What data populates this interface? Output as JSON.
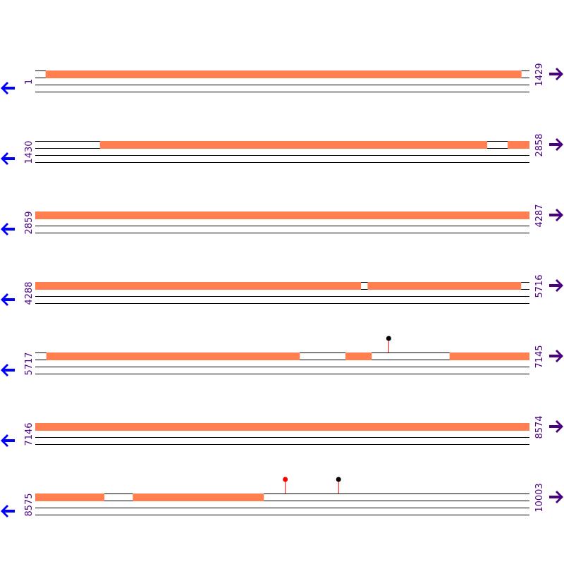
{
  "colors": {
    "feature": "#ff7f50",
    "strand_line": "#000000",
    "position_label": "#4b0082",
    "left_arrow": "#0000ff",
    "right_arrow": "#4b0082",
    "marker_stem": "#ff0000",
    "marker_black": "#000000",
    "marker_red": "#ff0000"
  },
  "icons": {
    "left": "arrow-left-icon",
    "right": "arrow-right-icon"
  },
  "rows": [
    {
      "start": "1",
      "end": "1429",
      "from": 1,
      "to": 1429,
      "features": [
        [
          31,
          1406
        ]
      ],
      "markers": []
    },
    {
      "start": "1430",
      "end": "2858",
      "from": 1430,
      "to": 2858,
      "features": [
        [
          1617,
          2736
        ],
        [
          2796,
          2858
        ]
      ],
      "markers": []
    },
    {
      "start": "2859",
      "end": "4287",
      "from": 2859,
      "to": 4287,
      "features": [
        [
          2859,
          4287
        ]
      ],
      "markers": []
    },
    {
      "start": "4288",
      "end": "5716",
      "from": 4288,
      "to": 5716,
      "features": [
        [
          4288,
          5229
        ],
        [
          5249,
          5692
        ]
      ],
      "markers": []
    },
    {
      "start": "5717",
      "end": "7145",
      "from": 5717,
      "to": 7145,
      "features": [
        [
          5749,
          6481
        ],
        [
          6614,
          6689
        ],
        [
          6915,
          7145
        ]
      ],
      "markers": [
        {
          "pos": 6739,
          "color": "black"
        }
      ]
    },
    {
      "start": "7146",
      "end": "8574",
      "from": 7146,
      "to": 8574,
      "features": [
        [
          7146,
          8574
        ]
      ],
      "markers": []
    },
    {
      "start": "8575",
      "end": "10003",
      "from": 8575,
      "to": 10003,
      "features": [
        [
          8575,
          8774
        ],
        [
          8857,
          9235
        ]
      ],
      "markers": [
        {
          "pos": 9298,
          "color": "red"
        },
        {
          "pos": 9452,
          "color": "black"
        }
      ]
    }
  ]
}
